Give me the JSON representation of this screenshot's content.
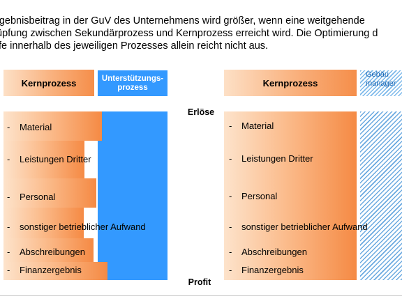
{
  "intro": {
    "line1": "rgebnisbeitrag in der GuV des Unternehmens wird größer, wenn eine weitgehende",
    "line2": "üpfung zwischen Sekundärprozess und Kernprozess erreicht wird. Die Optimierung d",
    "line3": "fe innerhalb des jeweiligen Prozesses allein reicht nicht aus."
  },
  "left": {
    "core_header": "Kernprozess",
    "support_header_line1": "Unterstützungs-",
    "support_header_line2": "prozess",
    "rows": [
      {
        "dash": "-",
        "label": "Material"
      },
      {
        "dash": "-",
        "label": "Leistungen Dritter"
      },
      {
        "dash": "-",
        "label": "Personal"
      },
      {
        "dash": "-",
        "label": "sonstiger betrieblicher Aufwand"
      },
      {
        "dash": "-",
        "label": "Abschreibungen"
      },
      {
        "dash": "-",
        "label": "Finanzergebnis"
      }
    ]
  },
  "right": {
    "core_header": "Kernprozess",
    "facility_header_line1": "Gebäu",
    "facility_header_line2": "manager",
    "rows": [
      {
        "dash": "-",
        "label": "Material"
      },
      {
        "dash": "-",
        "label": "Leistungen Dritter"
      },
      {
        "dash": "-",
        "label": "Personal"
      },
      {
        "dash": "-",
        "label": "sonstiger betrieblicher Aufwand"
      },
      {
        "dash": "-",
        "label": "Abschreibungen"
      },
      {
        "dash": "-",
        "label": "Finanzergebnis"
      }
    ]
  },
  "axis": {
    "top_label": "Erlöse",
    "bottom_label": "Profit"
  },
  "colors": {
    "orange": "#f58e4a",
    "blue": "#3399ff",
    "hatch_blue": "#6aa9e0"
  }
}
